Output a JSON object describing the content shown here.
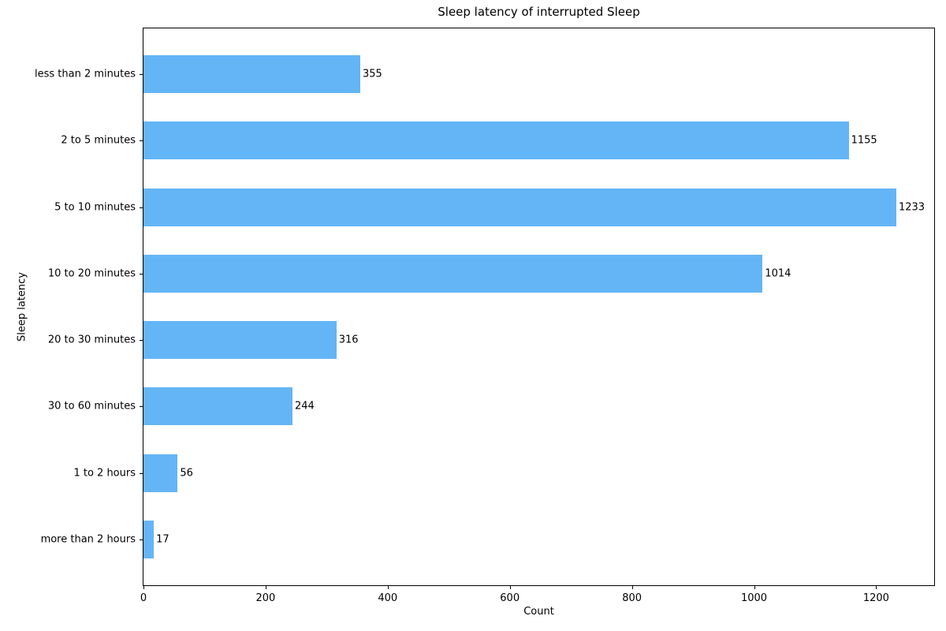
{
  "chart_data": {
    "type": "bar",
    "orientation": "horizontal",
    "title": "Sleep latency of interrupted Sleep",
    "xlabel": "Count",
    "ylabel": "Sleep latency",
    "categories": [
      "less than 2 minutes",
      "2 to 5 minutes",
      "5 to 10 minutes",
      "10 to 20 minutes",
      "20 to 30 minutes",
      "30 to 60 minutes",
      "1 to 2 hours",
      "more than 2 hours"
    ],
    "values": [
      355,
      1155,
      1233,
      1014,
      316,
      244,
      56,
      17
    ],
    "xticks": [
      0,
      200,
      400,
      600,
      800,
      1000,
      1200
    ],
    "xlim": [
      0,
      1295
    ],
    "grid": false,
    "legend": "none",
    "value_labels_shown": true,
    "bar_color": "#64b5f6",
    "axis_color": "#000000",
    "text_color": "#000000",
    "background_color": "#ffffff"
  }
}
